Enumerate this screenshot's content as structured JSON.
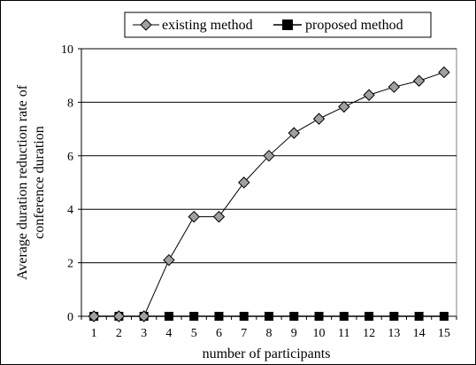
{
  "chart_data": {
    "type": "line",
    "title": "",
    "xlabel": "number of participants",
    "ylabel_lines": [
      "Average duration reduction rate of",
      "conference duration"
    ],
    "categories": [
      "1",
      "2",
      "3",
      "4",
      "5",
      "6",
      "7",
      "8",
      "9",
      "10",
      "11",
      "12",
      "13",
      "14",
      "15"
    ],
    "ylim": [
      0,
      10
    ],
    "yticks": [
      0,
      2,
      4,
      6,
      8,
      10
    ],
    "grid": "horizontal",
    "legend_position": "top",
    "series": [
      {
        "name": "existing method",
        "marker": "diamond",
        "color": "#808080",
        "values": [
          0,
          0,
          0,
          2.1,
          3.72,
          3.72,
          5.0,
          6.0,
          6.85,
          7.38,
          7.83,
          8.27,
          8.57,
          8.8,
          9.12
        ]
      },
      {
        "name": "proposed method",
        "marker": "square",
        "color": "#000000",
        "values": [
          0,
          0,
          0,
          0,
          0,
          0,
          0,
          0,
          0,
          0,
          0,
          0,
          0,
          0,
          0
        ]
      }
    ]
  }
}
